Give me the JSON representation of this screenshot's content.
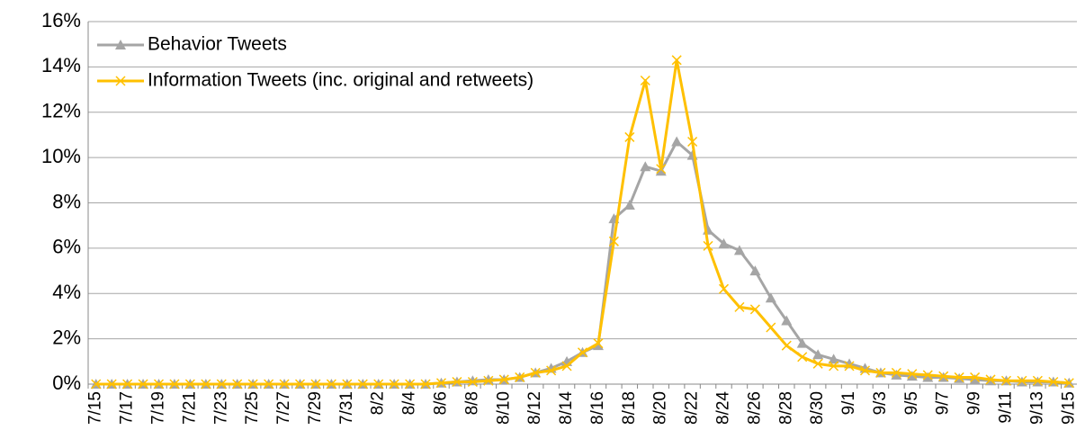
{
  "chart_data": {
    "type": "line",
    "categories": [
      "7/15",
      null,
      "7/17",
      null,
      "7/19",
      null,
      "7/21",
      null,
      "7/23",
      null,
      "7/25",
      null,
      "7/27",
      null,
      "7/29",
      null,
      "7/31",
      null,
      "8/2",
      null,
      "8/4",
      null,
      "8/6",
      null,
      "8/8",
      null,
      "8/10",
      null,
      "8/12",
      null,
      "8/14",
      null,
      "8/16",
      null,
      "8/18",
      null,
      "8/20",
      null,
      "8/22",
      null,
      "8/24",
      null,
      "8/26",
      null,
      "8/28",
      null,
      "8/30",
      null,
      "9/1",
      null,
      "9/3",
      null,
      "9/5",
      null,
      "9/7",
      null,
      "9/9",
      null,
      "9/11",
      null,
      "9/13",
      null,
      "9/15"
    ],
    "series": [
      {
        "name": "Behavior Tweets",
        "color": "#a5a5a5",
        "marker": "triangle",
        "values": [
          0,
          0,
          0,
          0,
          0,
          0,
          0,
          0,
          0,
          0,
          0,
          0,
          0,
          0,
          0,
          0,
          0,
          0,
          0,
          0,
          0,
          0,
          0.05,
          0.1,
          0.15,
          0.2,
          0.2,
          0.3,
          0.5,
          0.7,
          1,
          1.4,
          1.7,
          7.3,
          7.9,
          9.6,
          9.4,
          10.7,
          10.1,
          6.8,
          6.2,
          5.9,
          5,
          3.8,
          2.8,
          1.8,
          1.3,
          1.1,
          0.9,
          0.7,
          0.5,
          0.4,
          0.35,
          0.3,
          0.3,
          0.25,
          0.2,
          0.15,
          0.15,
          0.1,
          0.1,
          0.1,
          0.05
        ]
      },
      {
        "name": "Information Tweets (inc. original and retweets)",
        "color": "#ffc000",
        "marker": "x",
        "values": [
          0,
          0,
          0,
          0,
          0,
          0,
          0,
          0,
          0,
          0,
          0,
          0,
          0,
          0,
          0,
          0,
          0,
          0,
          0,
          0,
          0,
          0,
          0.05,
          0.1,
          0.1,
          0.15,
          0.2,
          0.3,
          0.5,
          0.6,
          0.8,
          1.4,
          1.8,
          6.3,
          10.9,
          13.4,
          9.5,
          14.3,
          10.7,
          6.1,
          4.2,
          3.4,
          3.3,
          2.5,
          1.7,
          1.2,
          0.9,
          0.8,
          0.8,
          0.6,
          0.5,
          0.5,
          0.45,
          0.4,
          0.35,
          0.3,
          0.3,
          0.2,
          0.15,
          0.15,
          0.15,
          0.1,
          0.05
        ]
      }
    ],
    "ylim": [
      0,
      16
    ],
    "yticks": [
      {
        "value": 0,
        "label": "0%"
      },
      {
        "value": 2,
        "label": "2%"
      },
      {
        "value": 4,
        "label": "4%"
      },
      {
        "value": 6,
        "label": "6%"
      },
      {
        "value": 8,
        "label": "8%"
      },
      {
        "value": 10,
        "label": "10%"
      },
      {
        "value": 12,
        "label": "12%"
      },
      {
        "value": 14,
        "label": "14%"
      },
      {
        "value": 16,
        "label": "16%"
      }
    ],
    "grid": true,
    "legend": "top-left"
  }
}
